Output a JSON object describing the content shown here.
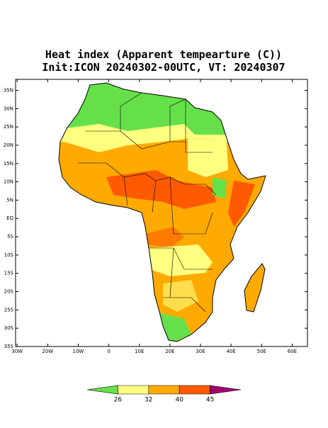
{
  "title": [
    "Heat index (Apparent tempearture (C))",
    "Init:ICON 20240302-00UTC, VT: 20240307"
  ],
  "map": {
    "ylim": [
      -35,
      38
    ],
    "xlim": [
      -30.5,
      65
    ],
    "yticks": [
      {
        "value": 35,
        "label": "35N"
      },
      {
        "value": 30,
        "label": "30N"
      },
      {
        "value": 25,
        "label": "25N"
      },
      {
        "value": 20,
        "label": "20N"
      },
      {
        "value": 15,
        "label": "15N"
      },
      {
        "value": 10,
        "label": "10N"
      },
      {
        "value": 5,
        "label": "5N"
      },
      {
        "value": 0,
        "label": "EQ"
      },
      {
        "value": -5,
        "label": "5S"
      },
      {
        "value": -10,
        "label": "10S"
      },
      {
        "value": -15,
        "label": "15S"
      },
      {
        "value": -20,
        "label": "20S"
      },
      {
        "value": -25,
        "label": "25S"
      },
      {
        "value": -30,
        "label": "30S"
      },
      {
        "value": -35,
        "label": "35S"
      }
    ],
    "xticks": [
      {
        "value": -30,
        "label": "30W"
      },
      {
        "value": -20,
        "label": "20W"
      },
      {
        "value": -10,
        "label": "10W"
      },
      0,
      {
        "value": 10,
        "label": "10E"
      },
      {
        "value": 20,
        "label": "20E"
      },
      {
        "value": 30,
        "label": "30E"
      },
      {
        "value": 40,
        "label": "40E"
      },
      {
        "value": 50,
        "label": "50E"
      },
      {
        "value": 60,
        "label": "60E"
      }
    ]
  },
  "colorbar": {
    "levels": [
      26,
      32,
      40,
      45
    ],
    "colors": [
      "#66e04a",
      "#ffff80",
      "#ffaa00",
      "#ff5a00",
      "#a0006e"
    ]
  }
}
